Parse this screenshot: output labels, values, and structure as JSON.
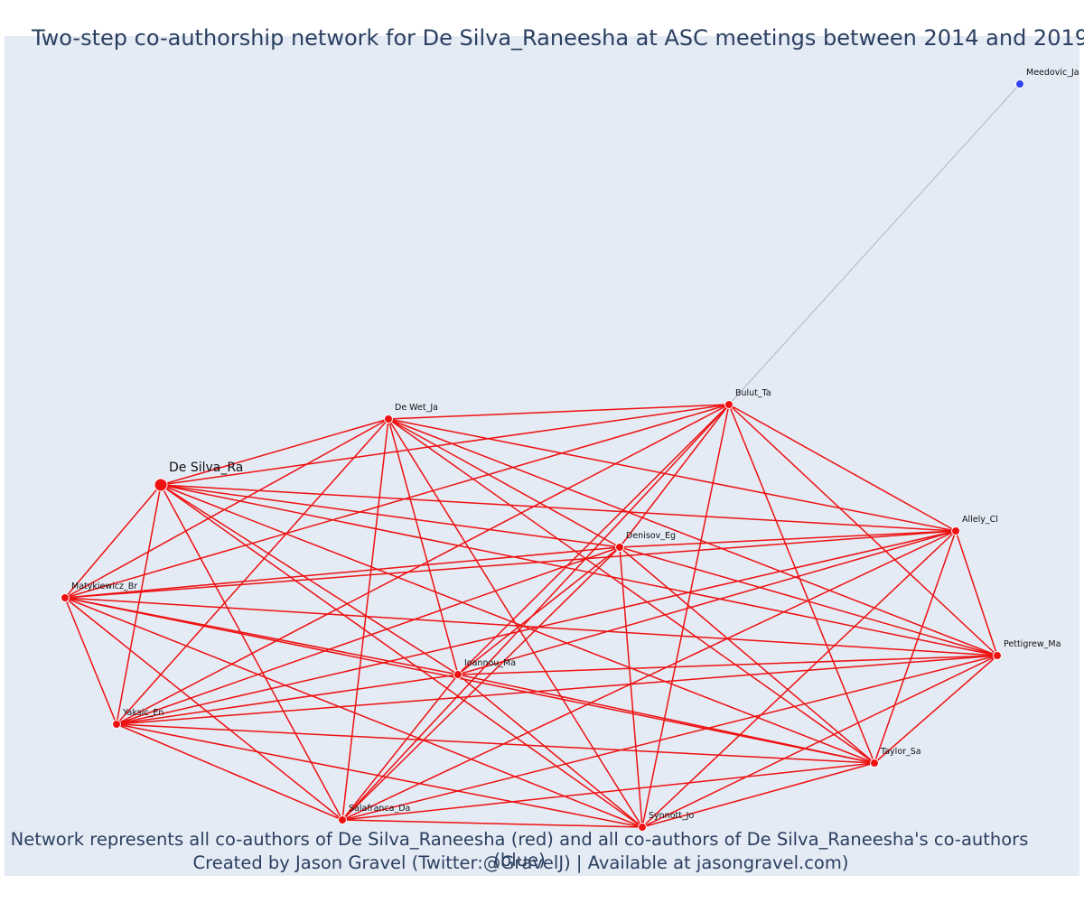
{
  "title": "Two-step co-authorship network for De Silva_Raneesha at ASC meetings between 2014 and 2019",
  "caption_line1": "Network represents all co-authors of De Silva_Raneesha (red) and all co-authors of De Silva_Raneesha's co-authors (blue)",
  "caption_line2": "Created by Jason Gravel (Twitter:@GravelJ) | Available at jasongravel.com)",
  "colors": {
    "coauthor": "#ee1111",
    "second_step": "#3344ee",
    "coauthor_edge": "#ee1111",
    "second_step_edge": "#b0b4c8",
    "background": "#e5ebf5"
  },
  "nodes": [
    {
      "id": "De Silva_Ra",
      "group": "focal"
    },
    {
      "id": "De Wet_Ja",
      "group": "coauthor"
    },
    {
      "id": "Bulut_Ta",
      "group": "coauthor"
    },
    {
      "id": "Allely_Cl",
      "group": "coauthor"
    },
    {
      "id": "Denisov_Eg",
      "group": "coauthor"
    },
    {
      "id": "Matykiewicz_Br",
      "group": "coauthor"
    },
    {
      "id": "Ioannou_Ma",
      "group": "coauthor"
    },
    {
      "id": "Pettigrew_Ma",
      "group": "coauthor"
    },
    {
      "id": "Yaksic_En",
      "group": "coauthor"
    },
    {
      "id": "Taylor_Sa",
      "group": "coauthor"
    },
    {
      "id": "Salafranca_Da",
      "group": "coauthor"
    },
    {
      "id": "Synnott_Jo",
      "group": "coauthor"
    },
    {
      "id": "Meedovic_Ja",
      "group": "second_step"
    }
  ],
  "edges_note": "all co-authors are fully interconnected; Meedovic_Ja links to Bulut_Ta",
  "second_step_links": [
    [
      "Meedovic_Ja",
      "Bulut_Ta"
    ]
  ]
}
